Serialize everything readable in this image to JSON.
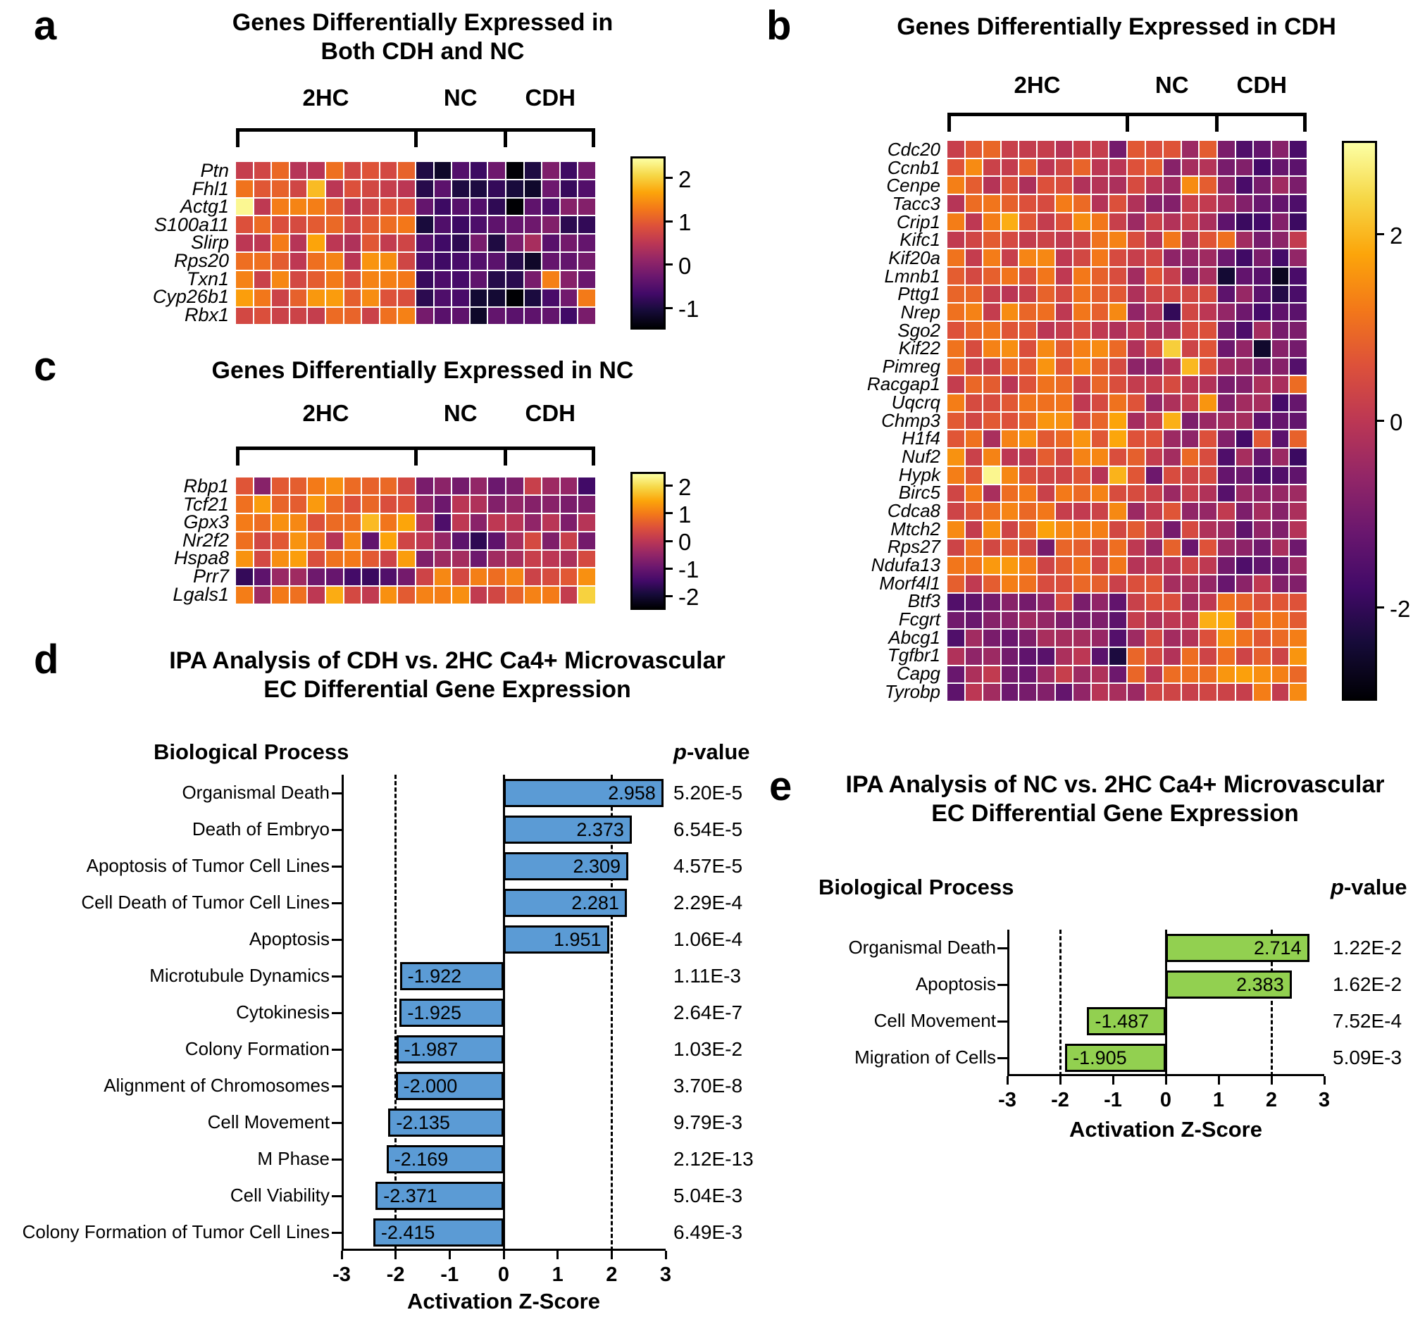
{
  "colors": {
    "background": "#ffffff",
    "heatmap_colormap": "inferno",
    "bar_blue": "#5b9bd5",
    "bar_green": "#92d050"
  },
  "chart_data": [
    {
      "id": "a",
      "panel_letter": "a",
      "type": "heatmap",
      "title_lines": [
        "Genes Differentially Expressed in",
        "Both CDH and NC"
      ],
      "col_groups": [
        {
          "label": "2HC",
          "cols": 10
        },
        {
          "label": "NC",
          "cols": 5
        },
        {
          "label": "CDH",
          "cols": 5
        }
      ],
      "rows": [
        "Ptn",
        "Fhl1",
        "Actg1",
        "S100a11",
        "Slirp",
        "Rps20",
        "Txn1",
        "Cyp26b1",
        "Rbx1"
      ],
      "group_means": [
        [
          0.9,
          -0.6,
          -0.5
        ],
        [
          1.0,
          -0.7,
          -0.6
        ],
        [
          0.9,
          -0.8,
          -0.5
        ],
        [
          1.0,
          -0.8,
          -0.6
        ],
        [
          0.9,
          -0.7,
          -0.5
        ],
        [
          1.0,
          -0.6,
          -0.7
        ],
        [
          0.9,
          -0.7,
          -0.5
        ],
        [
          1.2,
          -0.8,
          -0.6
        ],
        [
          0.9,
          -0.7,
          -0.5
        ]
      ],
      "zmin": -1.5,
      "zmax": 2.5,
      "colorbar_ticks": [
        2,
        1,
        0,
        -1
      ]
    },
    {
      "id": "b",
      "panel_letter": "b",
      "type": "heatmap",
      "title_lines": [
        "Genes Differentially Expressed in CDH"
      ],
      "col_groups": [
        {
          "label": "2HC",
          "cols": 10
        },
        {
          "label": "NC",
          "cols": 5
        },
        {
          "label": "CDH",
          "cols": 5
        }
      ],
      "rows": [
        "Cdc20",
        "Ccnb1",
        "Cenpe",
        "Tacc3",
        "Crip1",
        "Kifc1",
        "Kif20a",
        "Lmnb1",
        "Pttg1",
        "Nrep",
        "Sgo2",
        "Kif22",
        "Pimreg",
        "Racgap1",
        "Uqcrq",
        "Chmp3",
        "H1f4",
        "Nuf2",
        "Hypk",
        "Birc5",
        "Cdca8",
        "Mtch2",
        "Rps27",
        "Ndufa13",
        "Morf4l1",
        "Btf3",
        "Fcgrt",
        "Abcg1",
        "Tgfbr1",
        "Capg",
        "Tyrobp"
      ],
      "group_means": [
        [
          0.6,
          0.2,
          -1.0
        ],
        [
          0.7,
          0.0,
          -1.1
        ],
        [
          0.5,
          0.1,
          -0.9
        ],
        [
          0.6,
          -0.1,
          -1.0
        ],
        [
          0.7,
          0.2,
          -1.2
        ],
        [
          0.6,
          0.0,
          -0.9
        ],
        [
          0.8,
          0.1,
          -1.1
        ],
        [
          0.6,
          0.0,
          -1.4
        ],
        [
          0.7,
          0.2,
          -1.0
        ],
        [
          0.8,
          0.0,
          -1.1
        ],
        [
          0.6,
          0.1,
          -0.9
        ],
        [
          0.7,
          0.3,
          -1.0
        ],
        [
          0.9,
          0.1,
          -1.1
        ],
        [
          0.6,
          0.0,
          -0.9
        ],
        [
          0.8,
          0.2,
          -1.0
        ],
        [
          1.0,
          0.1,
          -1.1
        ],
        [
          1.1,
          0.0,
          -1.0
        ],
        [
          0.8,
          0.2,
          -1.1
        ],
        [
          0.7,
          0.1,
          -0.9
        ],
        [
          0.6,
          0.0,
          -1.2
        ],
        [
          0.7,
          -0.1,
          -1.0
        ],
        [
          0.8,
          0.1,
          -0.9
        ],
        [
          0.9,
          0.2,
          -1.0
        ],
        [
          0.9,
          0.0,
          -1.1
        ],
        [
          0.8,
          0.1,
          -0.9
        ],
        [
          -1.0,
          0.2,
          0.7
        ],
        [
          -0.9,
          0.4,
          1.1
        ],
        [
          -0.8,
          0.2,
          1.2
        ],
        [
          -0.7,
          0.3,
          1.0
        ],
        [
          -0.6,
          0.4,
          1.0
        ],
        [
          -0.7,
          0.3,
          0.9
        ]
      ],
      "zmin": -3,
      "zmax": 3,
      "colorbar_ticks": [
        2,
        0,
        -2
      ]
    },
    {
      "id": "c",
      "panel_letter": "c",
      "type": "heatmap",
      "title_lines": [
        "Genes Differentially Expressed in NC"
      ],
      "col_groups": [
        {
          "label": "2HC",
          "cols": 10
        },
        {
          "label": "NC",
          "cols": 5
        },
        {
          "label": "CDH",
          "cols": 5
        }
      ],
      "rows": [
        "Rbp1",
        "Tcf21",
        "Gpx3",
        "Nr2f2",
        "Hspa8",
        "Prr7",
        "Lgals1"
      ],
      "group_means": [
        [
          0.9,
          -0.4,
          -0.1
        ],
        [
          1.0,
          -0.5,
          -0.2
        ],
        [
          1.1,
          -0.6,
          -0.3
        ],
        [
          0.9,
          -0.5,
          -0.2
        ],
        [
          0.8,
          -0.6,
          -0.3
        ],
        [
          -1.0,
          0.7,
          0.6
        ],
        [
          0.6,
          0.7,
          0.5
        ]
      ],
      "zmin": -2.5,
      "zmax": 2.5,
      "colorbar_ticks": [
        2,
        1,
        0,
        -1,
        -2
      ]
    },
    {
      "id": "d",
      "panel_letter": "d",
      "type": "bar",
      "title_lines": [
        "IPA Analysis of CDH vs. 2HC Ca4+ Microvascular",
        "EC Differential Gene Expression"
      ],
      "headers": {
        "process": "Biological Process",
        "p_italic": "p",
        "p_rest": "-value"
      },
      "categories": [
        "Organismal Death",
        "Death of Embryo",
        "Apoptosis of Tumor Cell Lines",
        "Cell Death of Tumor Cell Lines",
        "Apoptosis",
        "Microtubule Dynamics",
        "Cytokinesis",
        "Colony Formation",
        "Alignment of Chromosomes",
        "Cell Movement",
        "M Phase",
        "Cell Viability",
        "Colony Formation of Tumor Cell Lines"
      ],
      "values": [
        2.958,
        2.373,
        2.309,
        2.281,
        1.951,
        -1.922,
        -1.925,
        -1.987,
        -2.0,
        -2.135,
        -2.169,
        -2.371,
        -2.415
      ],
      "value_labels": [
        "2.958",
        "2.373",
        "2.309",
        "2.281",
        "1.951",
        "-1.922",
        "-1.925",
        "-1.987",
        "-2.000",
        "-2.135",
        "-2.169",
        "-2.371",
        "-2.415"
      ],
      "p_values": [
        "5.20E-5",
        "6.54E-5",
        "4.57E-5",
        "2.29E-4",
        "1.06E-4",
        "1.11E-3",
        "2.64E-7",
        "1.03E-2",
        "3.70E-8",
        "9.79E-3",
        "2.12E-13",
        "5.04E-3",
        "6.49E-3"
      ],
      "xlabel": "Activation Z-Score",
      "xlim": [
        -3,
        3
      ],
      "xticks": [
        -3,
        -2,
        -1,
        0,
        1,
        2,
        3
      ],
      "dashed_lines": [
        -2,
        2
      ],
      "bar_color": "#5b9bd5"
    },
    {
      "id": "e",
      "panel_letter": "e",
      "type": "bar",
      "title_lines": [
        "IPA Analysis of NC vs. 2HC Ca4+ Microvascular",
        "EC Differential Gene Expression"
      ],
      "headers": {
        "process": "Biological Process",
        "p_italic": "p",
        "p_rest": "-value"
      },
      "categories": [
        "Organismal Death",
        "Apoptosis",
        "Cell Movement",
        "Migration of Cells"
      ],
      "values": [
        2.714,
        2.383,
        -1.487,
        -1.905
      ],
      "value_labels": [
        "2.714",
        "2.383",
        "-1.487",
        "-1.905"
      ],
      "p_values": [
        "1.22E-2",
        "1.62E-2",
        "7.52E-4",
        "5.09E-3"
      ],
      "xlabel": "Activation Z-Score",
      "xlim": [
        -3,
        3
      ],
      "xticks": [
        -3,
        -2,
        -1,
        0,
        1,
        2,
        3
      ],
      "dashed_lines": [
        -2,
        2
      ],
      "bar_color": "#92d050"
    }
  ]
}
